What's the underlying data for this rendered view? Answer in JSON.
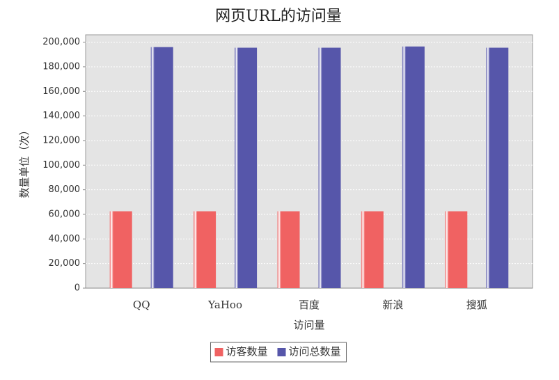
{
  "chart_data": {
    "type": "bar",
    "title": "网页URL的访问量",
    "x_label": "访问量",
    "y_label": "数量单位（次）",
    "categories": [
      "QQ",
      "YaHoo",
      "百度",
      "新浪",
      "搜狐"
    ],
    "series": [
      {
        "name": "访客数量",
        "color": "#f06262",
        "values": [
          62500,
          62500,
          62500,
          62500,
          62500
        ]
      },
      {
        "name": "访问总数量",
        "color": "#5656aa",
        "values": [
          196000,
          195500,
          195500,
          196500,
          195500
        ]
      }
    ],
    "ylim": [
      0,
      206000
    ],
    "yticks": [
      0,
      {
        "value": 20000,
        "label": "20,000"
      },
      {
        "value": 40000,
        "label": "40,000"
      },
      {
        "value": 60000,
        "label": "60,000"
      },
      {
        "value": 80000,
        "label": "80,000"
      },
      {
        "value": 100000,
        "label": "100,000"
      },
      {
        "value": 120000,
        "label": "120,000"
      },
      {
        "value": 140000,
        "label": "140,000"
      },
      {
        "value": 160000,
        "label": "160,000"
      },
      {
        "value": 180000,
        "label": "180,000"
      },
      {
        "value": 200000,
        "label": "200,000"
      }
    ],
    "grid": true,
    "legend": "bottom"
  }
}
